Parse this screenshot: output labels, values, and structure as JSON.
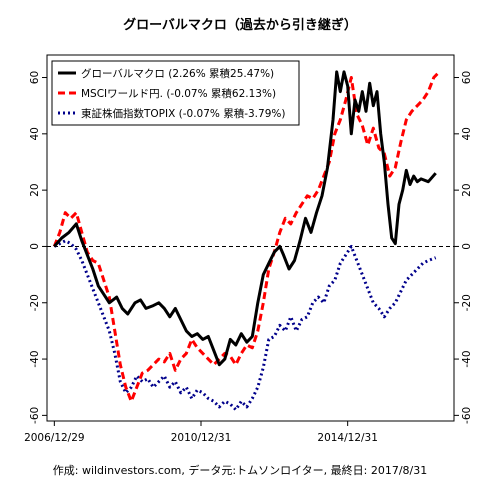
{
  "chart_data": {
    "type": "line",
    "title": "グローバルマクロ（過去から引き継ぎ）",
    "footer": "作成: wildinvestors.com, データ元:トムソンロイター, 最終日: 2017/8/31",
    "x_tick_labels": [
      "2006/12/29",
      "2010/12/31",
      "2014/12/31"
    ],
    "x_ticks": [
      2007.0,
      2011.0,
      2015.0
    ],
    "x_unit": "year",
    "xlim": [
      2006.8,
      2017.9
    ],
    "ylim": [
      -62,
      68
    ],
    "y_ticks": [
      -60,
      -40,
      -20,
      0,
      20,
      40,
      60
    ],
    "y_ticks_both_sides": true,
    "zero_line": "dashed",
    "legend_position": "top-left",
    "series": [
      {
        "name": "グローバルマクロ (2.26% 累積25.47%)",
        "color": "#000000",
        "style": "solid",
        "points": [
          [
            2007.0,
            0
          ],
          [
            2007.2,
            3
          ],
          [
            2007.4,
            5
          ],
          [
            2007.6,
            8
          ],
          [
            2007.75,
            2
          ],
          [
            2007.9,
            -3
          ],
          [
            2008.05,
            -8
          ],
          [
            2008.2,
            -14
          ],
          [
            2008.35,
            -17
          ],
          [
            2008.5,
            -20
          ],
          [
            2008.7,
            -18
          ],
          [
            2008.85,
            -22
          ],
          [
            2009.0,
            -24
          ],
          [
            2009.2,
            -20
          ],
          [
            2009.35,
            -19
          ],
          [
            2009.5,
            -22
          ],
          [
            2009.7,
            -21
          ],
          [
            2009.85,
            -20
          ],
          [
            2010.0,
            -22
          ],
          [
            2010.15,
            -25
          ],
          [
            2010.3,
            -22
          ],
          [
            2010.45,
            -26
          ],
          [
            2010.6,
            -30
          ],
          [
            2010.75,
            -32
          ],
          [
            2010.9,
            -31
          ],
          [
            2011.05,
            -33
          ],
          [
            2011.2,
            -32
          ],
          [
            2011.35,
            -37
          ],
          [
            2011.5,
            -42
          ],
          [
            2011.65,
            -40
          ],
          [
            2011.8,
            -33
          ],
          [
            2011.95,
            -35
          ],
          [
            2012.1,
            -31
          ],
          [
            2012.25,
            -34
          ],
          [
            2012.4,
            -32
          ],
          [
            2012.55,
            -20
          ],
          [
            2012.7,
            -10
          ],
          [
            2012.85,
            -6
          ],
          [
            2013.0,
            -2
          ],
          [
            2013.15,
            0
          ],
          [
            2013.25,
            -3
          ],
          [
            2013.4,
            -8
          ],
          [
            2013.55,
            -5
          ],
          [
            2013.7,
            2
          ],
          [
            2013.85,
            10
          ],
          [
            2014.0,
            5
          ],
          [
            2014.15,
            12
          ],
          [
            2014.3,
            18
          ],
          [
            2014.45,
            28
          ],
          [
            2014.6,
            45
          ],
          [
            2014.7,
            62
          ],
          [
            2014.8,
            55
          ],
          [
            2014.9,
            62
          ],
          [
            2015.0,
            57
          ],
          [
            2015.1,
            40
          ],
          [
            2015.2,
            52
          ],
          [
            2015.3,
            48
          ],
          [
            2015.4,
            55
          ],
          [
            2015.5,
            48
          ],
          [
            2015.6,
            58
          ],
          [
            2015.7,
            50
          ],
          [
            2015.8,
            55
          ],
          [
            2015.9,
            40
          ],
          [
            2016.0,
            30
          ],
          [
            2016.1,
            15
          ],
          [
            2016.2,
            3
          ],
          [
            2016.3,
            1
          ],
          [
            2016.4,
            15
          ],
          [
            2016.5,
            20
          ],
          [
            2016.6,
            27
          ],
          [
            2016.7,
            22
          ],
          [
            2016.8,
            25
          ],
          [
            2016.9,
            23
          ],
          [
            2017.0,
            24
          ],
          [
            2017.2,
            23
          ],
          [
            2017.4,
            26
          ]
        ]
      },
      {
        "name": "MSCIワールド円. (-0.07% 累積62.13%)",
        "color": "#ff0000",
        "style": "dashed",
        "points": [
          [
            2007.0,
            0
          ],
          [
            2007.15,
            5
          ],
          [
            2007.3,
            12
          ],
          [
            2007.45,
            10
          ],
          [
            2007.6,
            12
          ],
          [
            2007.75,
            5
          ],
          [
            2007.9,
            -2
          ],
          [
            2008.05,
            -5
          ],
          [
            2008.2,
            -6
          ],
          [
            2008.35,
            -12
          ],
          [
            2008.5,
            -18
          ],
          [
            2008.65,
            -30
          ],
          [
            2008.8,
            -42
          ],
          [
            2008.95,
            -50
          ],
          [
            2009.1,
            -55
          ],
          [
            2009.25,
            -50
          ],
          [
            2009.4,
            -45
          ],
          [
            2009.55,
            -44
          ],
          [
            2009.7,
            -42
          ],
          [
            2009.85,
            -40
          ],
          [
            2010.0,
            -41
          ],
          [
            2010.15,
            -38
          ],
          [
            2010.3,
            -44
          ],
          [
            2010.45,
            -40
          ],
          [
            2010.6,
            -38
          ],
          [
            2010.75,
            -33
          ],
          [
            2010.9,
            -36
          ],
          [
            2011.05,
            -38
          ],
          [
            2011.2,
            -40
          ],
          [
            2011.35,
            -42
          ],
          [
            2011.5,
            -40
          ],
          [
            2011.65,
            -38
          ],
          [
            2011.8,
            -39
          ],
          [
            2011.95,
            -42
          ],
          [
            2012.1,
            -38
          ],
          [
            2012.25,
            -35
          ],
          [
            2012.4,
            -36
          ],
          [
            2012.55,
            -30
          ],
          [
            2012.7,
            -20
          ],
          [
            2012.85,
            -8
          ],
          [
            2013.0,
            -2
          ],
          [
            2013.15,
            5
          ],
          [
            2013.3,
            10
          ],
          [
            2013.45,
            8
          ],
          [
            2013.6,
            12
          ],
          [
            2013.75,
            15
          ],
          [
            2013.9,
            18
          ],
          [
            2014.05,
            17
          ],
          [
            2014.2,
            20
          ],
          [
            2014.35,
            25
          ],
          [
            2014.5,
            30
          ],
          [
            2014.65,
            40
          ],
          [
            2014.8,
            45
          ],
          [
            2014.95,
            52
          ],
          [
            2015.1,
            60
          ],
          [
            2015.25,
            47
          ],
          [
            2015.4,
            43
          ],
          [
            2015.55,
            36
          ],
          [
            2015.7,
            42
          ],
          [
            2015.85,
            35
          ],
          [
            2016.0,
            33
          ],
          [
            2016.15,
            25
          ],
          [
            2016.3,
            28
          ],
          [
            2016.45,
            37
          ],
          [
            2016.6,
            45
          ],
          [
            2016.75,
            48
          ],
          [
            2016.9,
            50
          ],
          [
            2017.05,
            52
          ],
          [
            2017.2,
            55
          ],
          [
            2017.35,
            60
          ],
          [
            2017.5,
            62
          ]
        ]
      },
      {
        "name": "東証株価指数TOPIX (-0.07% 累積-3.79%)",
        "color": "#00008b",
        "style": "dotted",
        "points": [
          [
            2007.0,
            0
          ],
          [
            2007.15,
            1
          ],
          [
            2007.3,
            2
          ],
          [
            2007.45,
            1
          ],
          [
            2007.6,
            -1
          ],
          [
            2007.75,
            -5
          ],
          [
            2007.9,
            -10
          ],
          [
            2008.05,
            -15
          ],
          [
            2008.2,
            -20
          ],
          [
            2008.35,
            -25
          ],
          [
            2008.5,
            -30
          ],
          [
            2008.65,
            -38
          ],
          [
            2008.8,
            -48
          ],
          [
            2008.95,
            -52
          ],
          [
            2009.1,
            -50
          ],
          [
            2009.25,
            -46
          ],
          [
            2009.4,
            -48
          ],
          [
            2009.55,
            -47
          ],
          [
            2009.7,
            -50
          ],
          [
            2009.85,
            -48
          ],
          [
            2010.0,
            -46
          ],
          [
            2010.15,
            -50
          ],
          [
            2010.3,
            -48
          ],
          [
            2010.45,
            -52
          ],
          [
            2010.6,
            -50
          ],
          [
            2010.75,
            -54
          ],
          [
            2010.9,
            -51
          ],
          [
            2011.05,
            -52
          ],
          [
            2011.2,
            -54
          ],
          [
            2011.35,
            -55
          ],
          [
            2011.5,
            -57
          ],
          [
            2011.65,
            -55
          ],
          [
            2011.8,
            -56
          ],
          [
            2011.95,
            -58
          ],
          [
            2012.1,
            -55
          ],
          [
            2012.25,
            -57
          ],
          [
            2012.4,
            -54
          ],
          [
            2012.55,
            -50
          ],
          [
            2012.7,
            -43
          ],
          [
            2012.85,
            -33
          ],
          [
            2013.0,
            -32
          ],
          [
            2013.15,
            -28
          ],
          [
            2013.3,
            -30
          ],
          [
            2013.45,
            -25
          ],
          [
            2013.6,
            -30
          ],
          [
            2013.75,
            -26
          ],
          [
            2013.9,
            -25
          ],
          [
            2014.05,
            -20
          ],
          [
            2014.2,
            -18
          ],
          [
            2014.35,
            -20
          ],
          [
            2014.5,
            -14
          ],
          [
            2014.65,
            -12
          ],
          [
            2014.8,
            -6
          ],
          [
            2014.95,
            -3
          ],
          [
            2015.1,
            0
          ],
          [
            2015.25,
            -5
          ],
          [
            2015.4,
            -10
          ],
          [
            2015.55,
            -15
          ],
          [
            2015.7,
            -20
          ],
          [
            2015.85,
            -22
          ],
          [
            2016.0,
            -25
          ],
          [
            2016.15,
            -22
          ],
          [
            2016.3,
            -20
          ],
          [
            2016.45,
            -16
          ],
          [
            2016.6,
            -12
          ],
          [
            2016.75,
            -10
          ],
          [
            2016.9,
            -8
          ],
          [
            2017.05,
            -6
          ],
          [
            2017.2,
            -5
          ],
          [
            2017.4,
            -4
          ]
        ]
      }
    ]
  }
}
